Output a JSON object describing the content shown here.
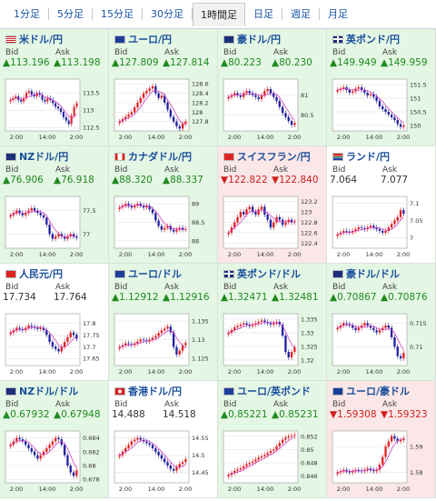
{
  "tabs": [
    {
      "label": "1分足",
      "active": false
    },
    {
      "label": "5分足",
      "active": false
    },
    {
      "label": "15分足",
      "active": false
    },
    {
      "label": "30分足",
      "active": false
    },
    {
      "label": "1時間足",
      "active": true
    },
    {
      "label": "日足",
      "active": false
    },
    {
      "label": "週足",
      "active": false
    },
    {
      "label": "月足",
      "active": false
    }
  ],
  "bid_label": "Bid",
  "ask_label": "Ask",
  "colors": {
    "up": "#1f8a1f",
    "down": "#d01e1e",
    "up_bg": "#e4f6e4",
    "down_bg": "#fbe7e7",
    "candle_up": "#e02020",
    "candle_down": "#2020a0",
    "ma": "#d040c0"
  },
  "pairs": [
    {
      "name": "米ドル/円",
      "flag": "flag-us-icon",
      "trend": "up",
      "bid": "▲113.196",
      "ask": "▲113.198",
      "chart_data": {
        "type": "candlestick",
        "x_ticks": [
          "2:00",
          "14:00",
          "2:00"
        ],
        "y_ticks": [
          "113.5",
          "113",
          "112.5"
        ],
        "ylim": [
          112.4,
          113.9
        ],
        "closes": [
          113.3,
          113.35,
          113.4,
          113.3,
          113.25,
          113.35,
          113.5,
          113.55,
          113.45,
          113.4,
          113.5,
          113.45,
          113.3,
          113.25,
          113.35,
          113.3,
          113.2,
          113.1,
          113.05,
          112.95,
          112.8,
          112.7,
          112.6,
          112.85,
          113.1,
          113.2
        ]
      }
    },
    {
      "name": "ユーロ/円",
      "flag": "flag-eu-icon",
      "trend": "up",
      "bid": "▲127.809",
      "ask": "▲127.814",
      "chart_data": {
        "type": "candlestick",
        "x_ticks": [
          "2:00",
          "14:00",
          "2:00"
        ],
        "y_ticks": [
          "128.6",
          "128.4",
          "128.2",
          "128",
          "127.8"
        ],
        "ylim": [
          127.6,
          128.7
        ],
        "closes": [
          127.8,
          127.85,
          127.9,
          127.95,
          128.0,
          128.1,
          128.2,
          128.3,
          128.4,
          128.45,
          128.5,
          128.55,
          128.4,
          128.3,
          128.35,
          128.2,
          128.05,
          127.9,
          127.8,
          127.7,
          127.65,
          127.75,
          127.8
        ]
      }
    },
    {
      "name": "豪ドル/円",
      "flag": "flag-au-icon",
      "trend": "up",
      "bid": "▲80.223",
      "ask": "▲80.230",
      "chart_data": {
        "type": "candlestick",
        "x_ticks": [
          "2:00",
          "14:00",
          "2:00"
        ],
        "y_ticks": [
          "81",
          "80.5"
        ],
        "ylim": [
          80.1,
          81.4
        ],
        "closes": [
          80.95,
          81.0,
          81.05,
          81.0,
          80.95,
          81.05,
          81.1,
          81.05,
          81.0,
          80.95,
          80.9,
          81.0,
          81.1,
          81.15,
          81.05,
          80.95,
          80.85,
          80.7,
          80.55,
          80.45,
          80.35,
          80.25,
          80.3
        ]
      }
    },
    {
      "name": "英ポンド/円",
      "flag": "flag-gb-icon",
      "trend": "up",
      "bid": "▲149.949",
      "ask": "▲149.959",
      "chart_data": {
        "type": "candlestick",
        "x_ticks": [
          "2:00",
          "14:00",
          "2:00"
        ],
        "y_ticks": [
          "151.5",
          "151",
          "150.5",
          "150"
        ],
        "ylim": [
          149.8,
          151.7
        ],
        "closes": [
          151.3,
          151.35,
          151.4,
          151.3,
          151.2,
          151.25,
          151.35,
          151.4,
          151.3,
          151.2,
          151.1,
          151.15,
          151.05,
          150.9,
          150.7,
          150.6,
          150.5,
          150.4,
          150.3,
          150.2,
          150.05,
          149.95,
          150.0
        ]
      }
    },
    {
      "name": "NZドル/円",
      "flag": "flag-nz-icon",
      "trend": "up",
      "bid": "▲76.906",
      "ask": "▲76.918",
      "chart_data": {
        "type": "candlestick",
        "x_ticks": [
          "2:00",
          "14:00",
          "2:00"
        ],
        "y_ticks": [
          "77.5",
          "77"
        ],
        "ylim": [
          76.7,
          77.8
        ],
        "closes": [
          77.4,
          77.45,
          77.5,
          77.45,
          77.4,
          77.45,
          77.5,
          77.55,
          77.5,
          77.45,
          77.4,
          77.35,
          77.2,
          77.0,
          76.9,
          76.95,
          77.0,
          76.95,
          76.9,
          76.95,
          77.0,
          76.95,
          76.92
        ]
      }
    },
    {
      "name": "カナダドル/円",
      "flag": "flag-ca-icon",
      "trend": "up",
      "bid": "▲88.320",
      "ask": "▲88.337",
      "chart_data": {
        "type": "candlestick",
        "x_ticks": [
          "2:00",
          "14:00",
          "2:00"
        ],
        "y_ticks": [
          "89",
          "88.5",
          "88"
        ],
        "ylim": [
          87.8,
          89.2
        ],
        "closes": [
          88.9,
          88.95,
          89.0,
          88.95,
          88.9,
          88.95,
          89.0,
          88.95,
          88.9,
          88.95,
          88.85,
          88.75,
          88.55,
          88.4,
          88.3,
          88.35,
          88.4,
          88.3,
          88.25,
          88.3,
          88.35,
          88.3,
          88.32
        ]
      }
    },
    {
      "name": "スイスフラン/円",
      "flag": "flag-ch-icon",
      "trend": "down",
      "bid": "▼122.822",
      "ask": "▼122.840",
      "chart_data": {
        "type": "candlestick",
        "x_ticks": [
          "2:00",
          "14:00",
          "2:00"
        ],
        "y_ticks": [
          "123.2",
          "123",
          "122.8",
          "122.6",
          "122.4"
        ],
        "ylim": [
          122.3,
          123.3
        ],
        "closes": [
          122.6,
          122.7,
          122.8,
          122.9,
          123.0,
          122.95,
          123.05,
          123.1,
          123.0,
          122.95,
          123.05,
          123.1,
          122.95,
          122.85,
          122.7,
          122.8,
          122.9,
          122.85,
          122.75,
          122.8,
          122.85,
          122.8,
          122.82
        ]
      }
    },
    {
      "name": "ランド/円",
      "flag": "flag-za-icon",
      "trend": "flat",
      "bid": "7.064",
      "ask": "7.077",
      "chart_data": {
        "type": "candlestick",
        "x_ticks": [
          "2:00",
          "14:00",
          "2:00"
        ],
        "y_ticks": [
          "7.1",
          "7.05",
          "7"
        ],
        "ylim": [
          6.97,
          7.12
        ],
        "closes": [
          7.01,
          7.015,
          7.02,
          7.018,
          7.015,
          7.02,
          7.025,
          7.03,
          7.028,
          7.025,
          7.03,
          7.035,
          7.03,
          7.025,
          7.02,
          7.015,
          7.02,
          7.03,
          7.04,
          7.05,
          7.06,
          7.08,
          7.07
        ]
      }
    },
    {
      "name": "人民元/円",
      "flag": "flag-cn-icon",
      "trend": "flat",
      "bid": "17.734",
      "ask": "17.764",
      "chart_data": {
        "type": "candlestick",
        "x_ticks": [
          "2:00",
          "14:00",
          "2:00"
        ],
        "y_ticks": [
          "17.8",
          "17.75",
          "17.7",
          "17.65"
        ],
        "ylim": [
          17.62,
          17.84
        ],
        "closes": [
          17.76,
          17.77,
          17.78,
          17.775,
          17.77,
          17.78,
          17.79,
          17.785,
          17.78,
          17.775,
          17.78,
          17.77,
          17.75,
          17.72,
          17.7,
          17.69,
          17.68,
          17.7,
          17.72,
          17.74,
          17.76,
          17.75,
          17.734
        ]
      }
    },
    {
      "name": "ユーロ/ドル",
      "flag": "flag-eu-icon",
      "trend": "up",
      "bid": "▲1.12912",
      "ask": "▲1.12916",
      "chart_data": {
        "type": "candlestick",
        "x_ticks": [
          "2:00",
          "14:00",
          "2:00"
        ],
        "y_ticks": [
          "1.135",
          "1.13",
          "1.125"
        ],
        "ylim": [
          1.123,
          1.137
        ],
        "closes": [
          1.128,
          1.1285,
          1.129,
          1.1288,
          1.1285,
          1.129,
          1.1295,
          1.13,
          1.1298,
          1.1295,
          1.13,
          1.1305,
          1.131,
          1.1318,
          1.1325,
          1.133,
          1.1335,
          1.132,
          1.128,
          1.126,
          1.127,
          1.1285,
          1.1291
        ]
      }
    },
    {
      "name": "英ポンド/ドル",
      "flag": "flag-gb-icon",
      "trend": "up",
      "bid": "▲1.32471",
      "ask": "▲1.32481",
      "chart_data": {
        "type": "candlestick",
        "x_ticks": [
          "2:00",
          "14:00",
          "2:00"
        ],
        "y_ticks": [
          "1.335",
          "1.33",
          "1.325",
          "1.32"
        ],
        "ylim": [
          1.318,
          1.337
        ],
        "closes": [
          1.33,
          1.331,
          1.332,
          1.3325,
          1.333,
          1.3335,
          1.333,
          1.3325,
          1.333,
          1.3335,
          1.334,
          1.3345,
          1.334,
          1.3335,
          1.333,
          1.3335,
          1.334,
          1.333,
          1.329,
          1.323,
          1.321,
          1.323,
          1.3247
        ]
      }
    },
    {
      "name": "豪ドル/ドル",
      "flag": "flag-au-icon",
      "trend": "up",
      "bid": "▲0.70867",
      "ask": "▲0.70876",
      "chart_data": {
        "type": "candlestick",
        "x_ticks": [
          "2:00",
          "14:00",
          "2:00"
        ],
        "y_ticks": [
          "0.715",
          "0.71"
        ],
        "ylim": [
          0.706,
          0.717
        ],
        "closes": [
          0.714,
          0.7145,
          0.715,
          0.7148,
          0.7145,
          0.714,
          0.7135,
          0.714,
          0.7145,
          0.715,
          0.7145,
          0.714,
          0.7135,
          0.713,
          0.7135,
          0.714,
          0.7145,
          0.714,
          0.712,
          0.71,
          0.708,
          0.7075,
          0.7087
        ]
      }
    },
    {
      "name": "NZドル/ドル",
      "flag": "flag-nz-icon",
      "trend": "up",
      "bid": "▲0.67932",
      "ask": "▲0.67948",
      "chart_data": {
        "type": "candlestick",
        "x_ticks": [
          "2:00",
          "14:00",
          "2:00"
        ],
        "y_ticks": [
          "0.684",
          "0.682",
          "0.68",
          "0.678"
        ],
        "ylim": [
          0.6775,
          0.685
        ],
        "closes": [
          0.683,
          0.6835,
          0.684,
          0.6838,
          0.6835,
          0.683,
          0.6825,
          0.682,
          0.6815,
          0.681,
          0.6815,
          0.682,
          0.6825,
          0.683,
          0.6835,
          0.684,
          0.6838,
          0.683,
          0.6815,
          0.68,
          0.679,
          0.6785,
          0.6793
        ]
      }
    },
    {
      "name": "香港ドル/円",
      "flag": "flag-hk-icon",
      "trend": "flat",
      "bid": "14.488",
      "ask": "14.518",
      "chart_data": {
        "type": "candlestick",
        "x_ticks": [
          "2:00",
          "14:00",
          "2:00"
        ],
        "y_ticks": [
          "14.55",
          "14.5",
          "14.45"
        ],
        "ylim": [
          14.42,
          14.57
        ],
        "closes": [
          14.5,
          14.51,
          14.52,
          14.53,
          14.54,
          14.545,
          14.55,
          14.545,
          14.54,
          14.535,
          14.53,
          14.52,
          14.51,
          14.5,
          14.49,
          14.48,
          14.47,
          14.46,
          14.455,
          14.465,
          14.475,
          14.48,
          14.488
        ]
      }
    },
    {
      "name": "ユーロ/英ポンド",
      "flag": "flag-eu-icon",
      "trend": "up",
      "bid": "▲0.85221",
      "ask": "▲0.85231",
      "chart_data": {
        "type": "candlestick",
        "x_ticks": [
          "2:00",
          "14:00",
          "2:00"
        ],
        "y_ticks": [
          "0.852",
          "0.85",
          "0.848",
          "0.846"
        ],
        "ylim": [
          0.845,
          0.8528
        ],
        "closes": [
          0.8462,
          0.8465,
          0.8468,
          0.847,
          0.8472,
          0.8475,
          0.8478,
          0.848,
          0.8482,
          0.8485,
          0.8488,
          0.849,
          0.8492,
          0.8495,
          0.8498,
          0.85,
          0.8505,
          0.851,
          0.8515,
          0.8518,
          0.852,
          0.8521,
          0.8522
        ]
      }
    },
    {
      "name": "ユーロ/豪ドル",
      "flag": "flag-eu-icon",
      "trend": "down",
      "bid": "▼1.59308",
      "ask": "▼1.59323",
      "chart_data": {
        "type": "candlestick",
        "x_ticks": [
          "2:00",
          "14:00",
          "2:00"
        ],
        "y_ticks": [
          "1.59",
          "1.58"
        ],
        "ylim": [
          1.576,
          1.596
        ],
        "closes": [
          1.58,
          1.5805,
          1.581,
          1.5805,
          1.58,
          1.5805,
          1.581,
          1.5808,
          1.5805,
          1.581,
          1.5815,
          1.581,
          1.5805,
          1.581,
          1.583,
          1.586,
          1.59,
          1.592,
          1.594,
          1.593,
          1.592,
          1.5925,
          1.5931
        ]
      }
    }
  ]
}
